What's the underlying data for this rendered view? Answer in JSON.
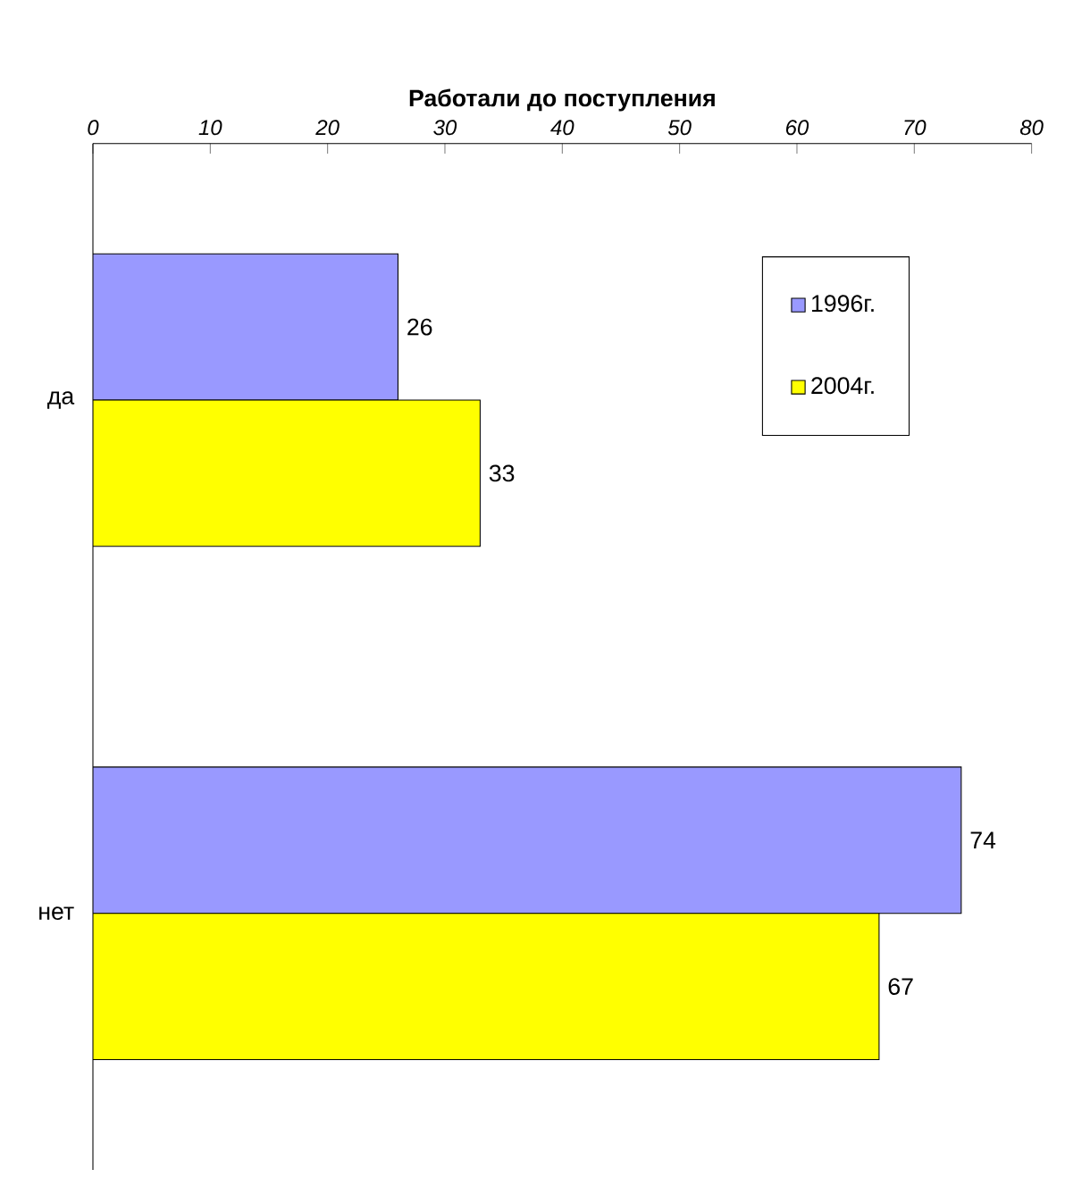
{
  "chart_data": {
    "type": "bar",
    "orientation": "horizontal",
    "title": "Работали до поступления",
    "categories": [
      "да",
      "нет"
    ],
    "series": [
      {
        "name": "1996г.",
        "color": "#9999ff",
        "values": [
          26,
          74
        ]
      },
      {
        "name": "2004г.",
        "color": "#ffff00",
        "values": [
          33,
          67
        ]
      }
    ],
    "xlim": [
      0,
      80
    ],
    "xticks": [
      0,
      10,
      20,
      30,
      40,
      50,
      60,
      70,
      80
    ],
    "data_labels": true,
    "legend": "top right"
  }
}
